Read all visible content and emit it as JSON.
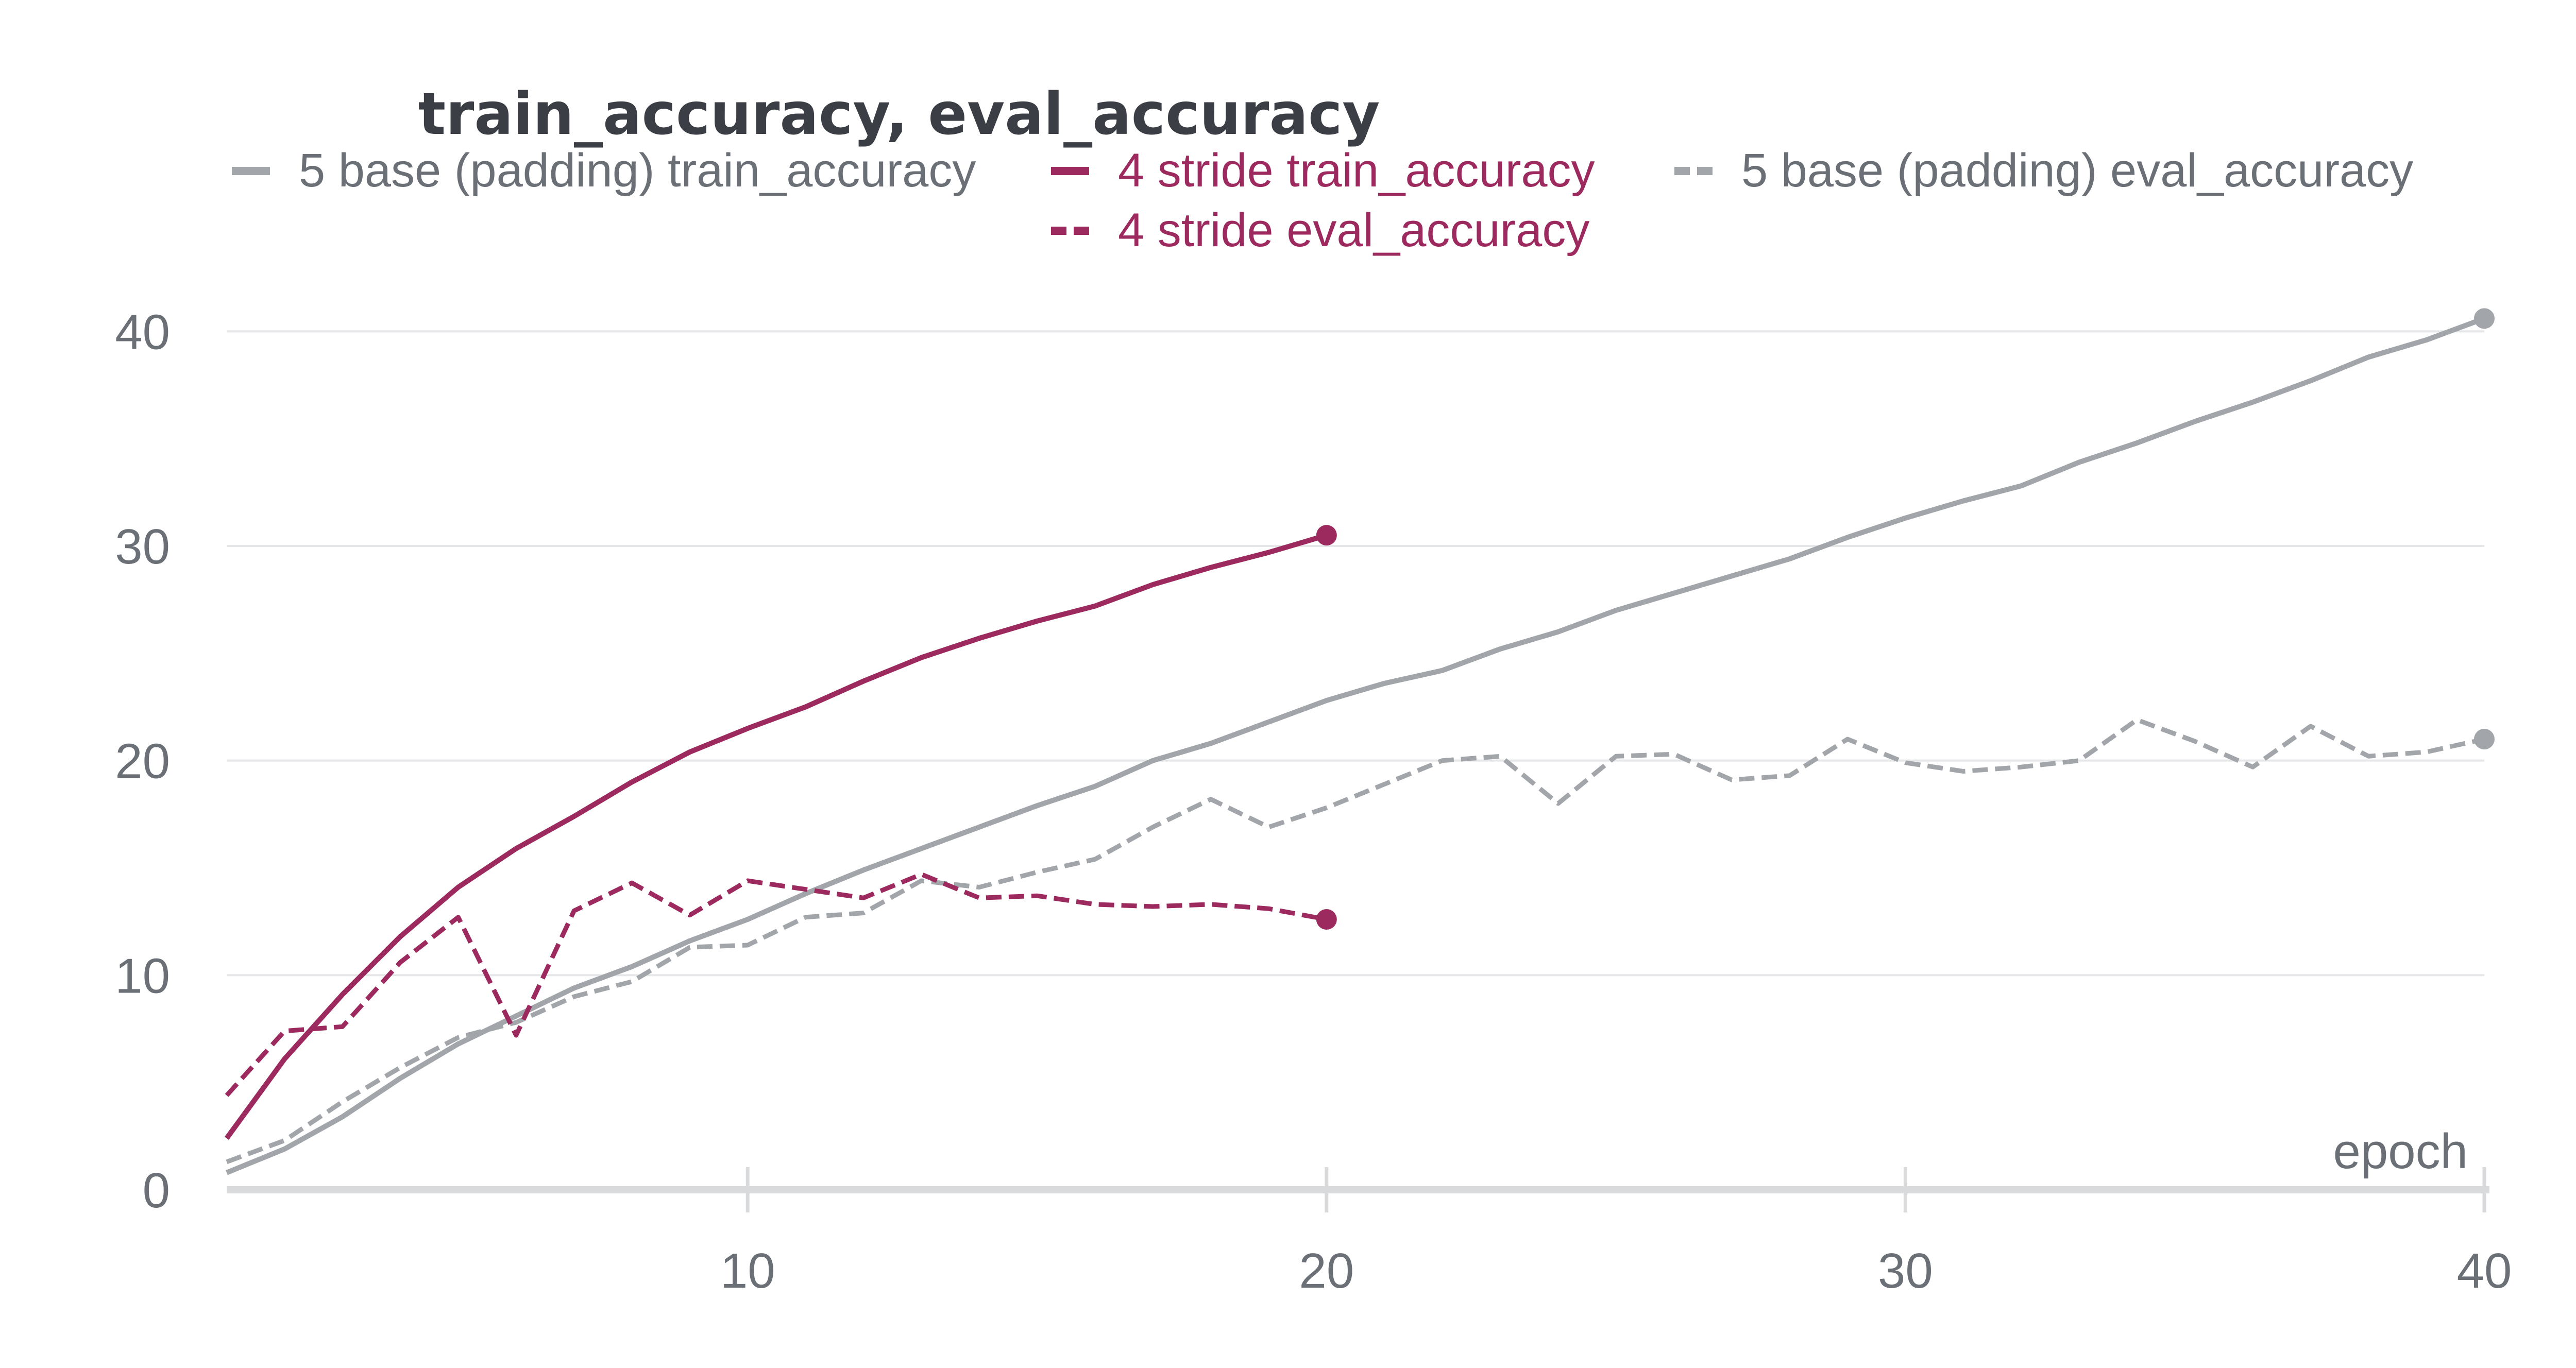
{
  "chart_data": {
    "type": "line",
    "title": "train_accuracy, eval_accuracy",
    "xlabel": "epoch",
    "ylabel": "",
    "xlim": [
      1,
      40
    ],
    "ylim": [
      0,
      42
    ],
    "x_ticks": [
      10,
      20,
      30,
      40
    ],
    "y_ticks": [
      0,
      10,
      20,
      30,
      40
    ],
    "grid": "horizontal",
    "legend_position": "top",
    "series": [
      {
        "name": "5 base (padding) train_accuracy",
        "color": "#a2a6ab",
        "dash": "solid",
        "x": [
          1,
          2,
          3,
          4,
          5,
          6,
          7,
          8,
          9,
          10,
          11,
          12,
          13,
          14,
          15,
          16,
          17,
          18,
          19,
          20,
          21,
          22,
          23,
          24,
          25,
          26,
          27,
          28,
          29,
          30,
          31,
          32,
          33,
          34,
          35,
          36,
          37,
          38,
          39,
          40
        ],
        "values": [
          0.8,
          1.9,
          3.4,
          5.2,
          6.8,
          8.1,
          9.4,
          10.4,
          11.6,
          12.6,
          13.8,
          14.9,
          15.9,
          16.9,
          17.9,
          18.8,
          20.0,
          20.8,
          21.8,
          22.8,
          23.6,
          24.2,
          25.2,
          26.0,
          27.0,
          27.8,
          28.6,
          29.4,
          30.4,
          31.3,
          32.1,
          32.8,
          33.9,
          34.8,
          35.8,
          36.7,
          37.7,
          38.8,
          39.6,
          40.6
        ]
      },
      {
        "name": "4 stride train_accuracy",
        "color": "#9c2a5e",
        "dash": "solid",
        "x": [
          1,
          2,
          3,
          4,
          5,
          6,
          7,
          8,
          9,
          10,
          11,
          12,
          13,
          14,
          15,
          16,
          17,
          18,
          19,
          20
        ],
        "values": [
          2.4,
          6.1,
          9.1,
          11.8,
          14.1,
          15.9,
          17.4,
          19.0,
          20.4,
          21.5,
          22.5,
          23.7,
          24.8,
          25.7,
          26.5,
          27.2,
          28.2,
          29.0,
          29.7,
          30.5
        ]
      },
      {
        "name": "5 base (padding) eval_accuracy",
        "color": "#a2a6ab",
        "dash": "dashed",
        "x": [
          1,
          2,
          3,
          4,
          5,
          6,
          7,
          8,
          9,
          10,
          11,
          12,
          13,
          14,
          15,
          16,
          17,
          18,
          19,
          20,
          21,
          22,
          23,
          24,
          25,
          26,
          27,
          28,
          29,
          30,
          31,
          32,
          33,
          34,
          35,
          36,
          37,
          38,
          39,
          40
        ],
        "values": [
          1.3,
          2.3,
          4.1,
          5.7,
          7.1,
          7.8,
          9.0,
          9.7,
          11.3,
          11.4,
          12.7,
          12.9,
          14.4,
          14.1,
          14.8,
          15.4,
          16.9,
          18.2,
          16.9,
          17.8,
          18.9,
          20.0,
          20.2,
          18.0,
          20.2,
          20.3,
          19.1,
          19.3,
          21.0,
          19.9,
          19.5,
          19.7,
          20.0,
          21.9,
          20.9,
          19.7,
          21.6,
          20.2,
          20.4,
          21.0
        ]
      },
      {
        "name": "4 stride eval_accuracy",
        "color": "#9c2a5e",
        "dash": "dashed",
        "x": [
          1,
          2,
          3,
          4,
          5,
          6,
          7,
          8,
          9,
          10,
          11,
          12,
          13,
          14,
          15,
          16,
          17,
          18,
          19,
          20
        ],
        "values": [
          4.4,
          7.4,
          7.6,
          10.6,
          12.7,
          7.2,
          13.0,
          14.3,
          12.8,
          14.4,
          14.0,
          13.6,
          14.7,
          13.6,
          13.7,
          13.3,
          13.2,
          13.3,
          13.1,
          12.6
        ]
      }
    ]
  }
}
